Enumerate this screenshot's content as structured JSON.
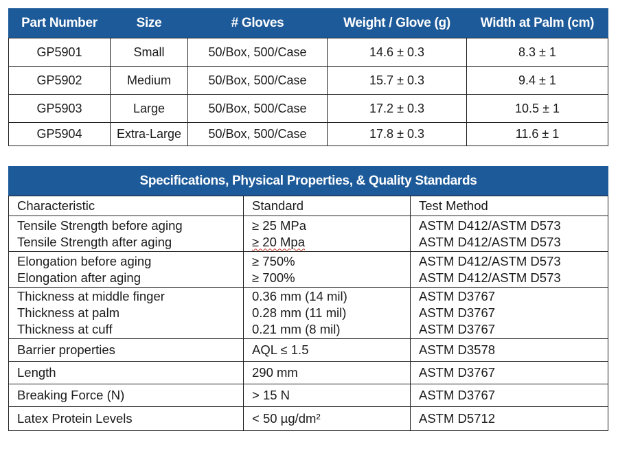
{
  "parts_table": {
    "headers": [
      "Part Number",
      "Size",
      "# Gloves",
      "Weight / Glove (g)",
      "Width at Palm (cm)"
    ],
    "rows": [
      [
        "GP5901",
        "Small",
        "50/Box, 500/Case",
        "14.6 ± 0.3",
        "8.3 ± 1"
      ],
      [
        "GP5902",
        "Medium",
        "50/Box, 500/Case",
        "15.7 ± 0.3",
        "9.4 ± 1"
      ],
      [
        "GP5903",
        "Large",
        "50/Box, 500/Case",
        "17.2 ± 0.3",
        "10.5 ± 1"
      ],
      [
        "GP5904",
        "Extra-Large",
        "50/Box, 500/Case",
        "17.8 ± 0.3",
        "11.6 ± 1"
      ]
    ]
  },
  "spec_table": {
    "title": "Specifications, Physical Properties, & Quality Standards",
    "headers": [
      "Characteristic",
      "Standard",
      "Test Method"
    ],
    "rows": [
      {
        "characteristic": [
          "Tensile Strength before aging",
          "Tensile Strength after aging"
        ],
        "standard": [
          "≥ 25 MPa",
          "≥ 20 Mpa"
        ],
        "method": [
          "ASTM D412/ASTM D573",
          "ASTM D412/ASTM D573"
        ]
      },
      {
        "characteristic": [
          "Elongation before aging",
          "Elongation after aging"
        ],
        "standard": [
          "≥ 750%",
          "≥ 700%"
        ],
        "method": [
          "ASTM D412/ASTM D573",
          "ASTM D412/ASTM D573"
        ]
      },
      {
        "characteristic": [
          "Thickness at middle finger",
          "Thickness at palm",
          "Thickness at cuff"
        ],
        "standard": [
          "0.36 mm (14 mil)",
          "0.28 mm (11 mil)",
          "0.21 mm (8 mil)"
        ],
        "method": [
          "ASTM D3767",
          "ASTM D3767",
          "ASTM D3767"
        ]
      },
      {
        "characteristic": [
          "Barrier properties"
        ],
        "standard": [
          "AQL ≤ 1.5"
        ],
        "method": [
          "ASTM D3578"
        ]
      },
      {
        "characteristic": [
          "Length"
        ],
        "standard": [
          "290 mm"
        ],
        "method": [
          "ASTM D3767"
        ]
      },
      {
        "characteristic": [
          "Breaking Force (N)"
        ],
        "standard": [
          "> 15 N"
        ],
        "method": [
          "ASTM D3767"
        ]
      },
      {
        "characteristic": [
          "Latex Protein Levels"
        ],
        "standard": [
          "< 50 µg/dm²"
        ],
        "method": [
          "ASTM D5712"
        ]
      }
    ]
  },
  "colors": {
    "header_blue": "#1d5a99",
    "header_text": "#ffffff",
    "border": "#1f1f1f"
  }
}
